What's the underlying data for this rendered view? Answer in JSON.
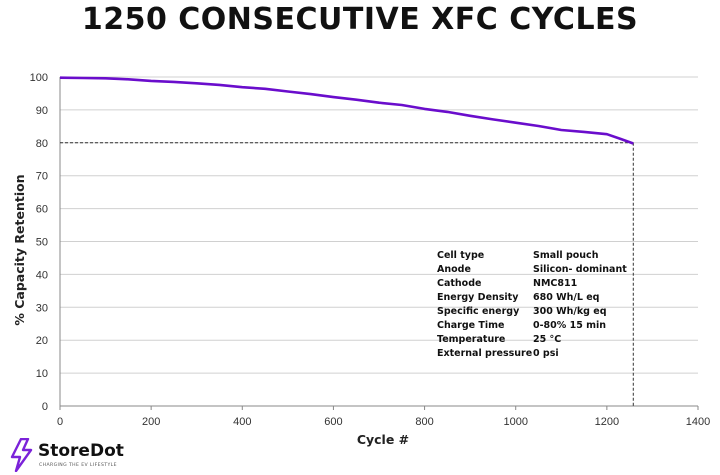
{
  "chart_data": {
    "type": "line",
    "title": "1250 CONSECUTIVE XFC CYCLES",
    "xlabel": "Cycle  #",
    "ylabel": "% Capacity Retention",
    "xlim": [
      0,
      1400
    ],
    "ylim": [
      0,
      100
    ],
    "xticks": [
      0,
      200,
      400,
      600,
      800,
      1000,
      1200,
      1400
    ],
    "yticks": [
      0,
      10,
      20,
      30,
      40,
      50,
      60,
      70,
      80,
      90,
      100
    ],
    "grid": "horizontal",
    "series": [
      {
        "color": "#6a0dcc",
        "x": [
          0,
          50,
          100,
          150,
          200,
          250,
          300,
          350,
          400,
          450,
          500,
          550,
          600,
          650,
          700,
          750,
          800,
          850,
          900,
          950,
          1000,
          1050,
          1100,
          1150,
          1200,
          1230,
          1258
        ],
        "y": [
          99.8,
          99.7,
          99.6,
          99.3,
          98.8,
          98.5,
          98.1,
          97.6,
          96.9,
          96.4,
          95.6,
          94.8,
          93.9,
          93.1,
          92.2,
          91.5,
          90.3,
          89.4,
          88.2,
          87.1,
          86.1,
          85.1,
          83.9,
          83.3,
          82.6,
          81.2,
          79.8
        ]
      }
    ],
    "reference_lines": {
      "y": 80,
      "x": 1258,
      "style": "dashed"
    },
    "colors": {
      "line": "#6a0dcc",
      "grid": "#d0d0d0",
      "reference": "#333333"
    }
  },
  "specs": [
    {
      "key": "Cell type",
      "value": "Small pouch"
    },
    {
      "key": "Anode",
      "value": "Silicon- dominant"
    },
    {
      "key": "Cathode",
      "value": "NMC811"
    },
    {
      "key": "Energy Density",
      "value": "680 Wh/L eq"
    },
    {
      "key": "Specific energy",
      "value": "300 Wh/kg eq"
    },
    {
      "key": "Charge Time",
      "value": "0-80% 15 min"
    },
    {
      "key": "Temperature",
      "value": "25 °C"
    },
    {
      "key": "External pressure",
      "value": "0 psi"
    }
  ],
  "logo": {
    "name": "StoreDot",
    "tagline": "CHARGING THE EV LIFESTYLE",
    "icon": "lightning-bolt-icon",
    "color": "#7b22d9"
  }
}
